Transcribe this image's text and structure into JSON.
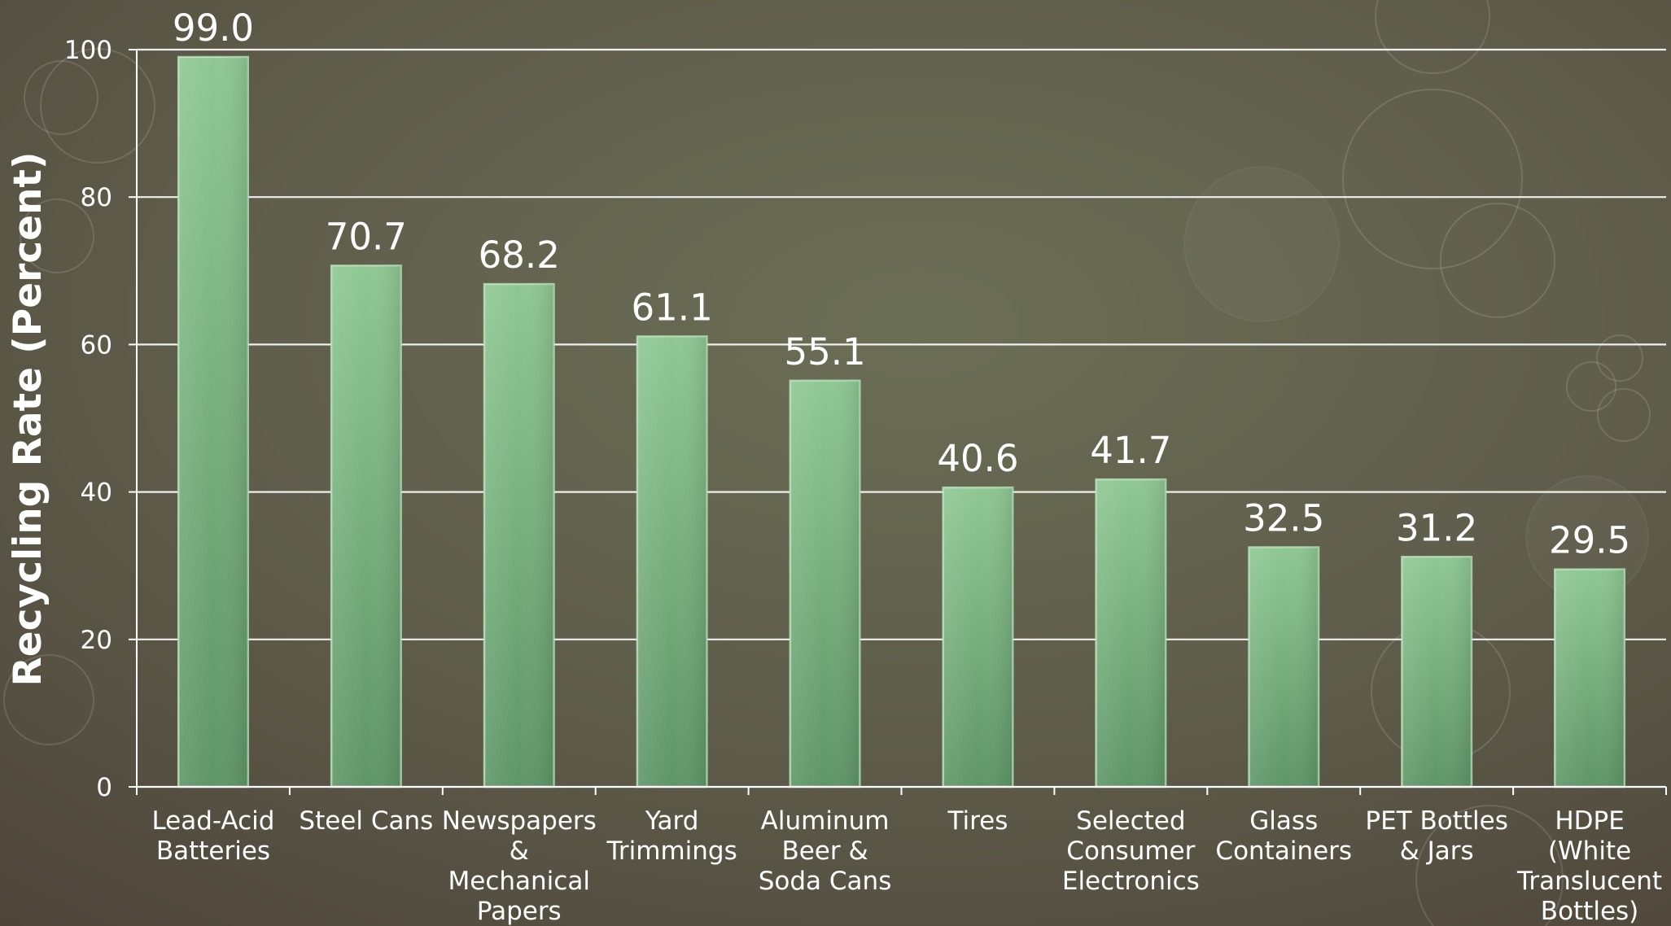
{
  "chart_data": {
    "type": "bar",
    "title": "",
    "xlabel": "",
    "ylabel": "Recycling Rate (Percent)",
    "ylim": [
      0,
      100
    ],
    "yticks": [
      0,
      20,
      40,
      60,
      80,
      100
    ],
    "grid": true,
    "categories": [
      [
        "Lead-Acid",
        "Batteries"
      ],
      [
        "Steel Cans"
      ],
      [
        "Newspapers",
        "&",
        "Mechanical",
        "Papers"
      ],
      [
        "Yard",
        "Trimmings"
      ],
      [
        "Aluminum",
        "Beer &",
        "Soda Cans"
      ],
      [
        "Tires"
      ],
      [
        "Selected",
        "Consumer",
        "Electronics"
      ],
      [
        "Glass",
        "Containers"
      ],
      [
        "PET Bottles",
        "& Jars"
      ],
      [
        "HDPE",
        "(White",
        "Translucent",
        "Bottles)"
      ]
    ],
    "values": [
      99.0,
      70.7,
      68.2,
      61.1,
      55.1,
      40.6,
      41.7,
      32.5,
      31.2,
      29.5
    ],
    "value_labels": [
      "99.0",
      "70.7",
      "68.2",
      "61.1",
      "55.1",
      "40.6",
      "41.7",
      "32.5",
      "31.2",
      "29.5"
    ],
    "colors": {
      "bar_top": "#8fc793",
      "bar_bottom": "#5f9567",
      "bar_edge": "#b7e0b8",
      "text": "#ffffff",
      "grid": "#ffffff"
    }
  }
}
